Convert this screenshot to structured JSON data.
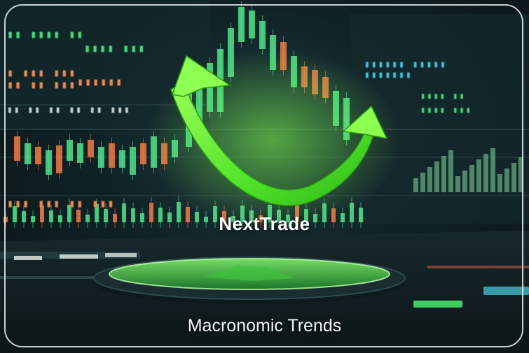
{
  "brand": {
    "name": "NextTrade"
  },
  "tagline": "Macronomic Trends",
  "colors": {
    "accent": "#5cf032",
    "up": "#4fe38a",
    "down": "#f07a45",
    "frame": "#ebf0f0"
  }
}
